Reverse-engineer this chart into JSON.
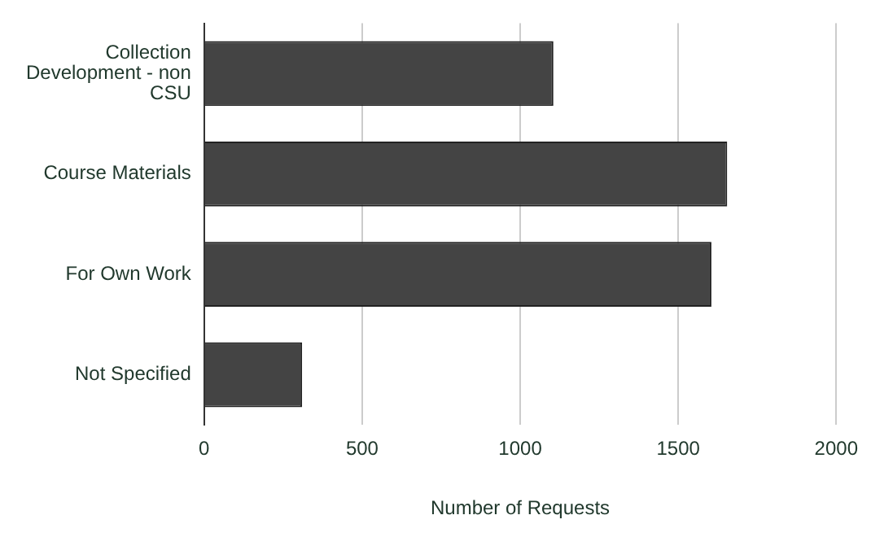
{
  "chart_data": {
    "type": "bar",
    "orientation": "horizontal",
    "xlabel": "Number of Requests",
    "categories": [
      "Collection Development - non CSU",
      "Course Materials",
      "For Own Work",
      "Not Specified"
    ],
    "values": [
      1105,
      1655,
      1605,
      310
    ],
    "color": "#444444",
    "xlim": [
      0,
      2000
    ],
    "xticks": [
      0,
      500,
      1000,
      1500,
      2000
    ],
    "grid": "x",
    "legend": false
  }
}
